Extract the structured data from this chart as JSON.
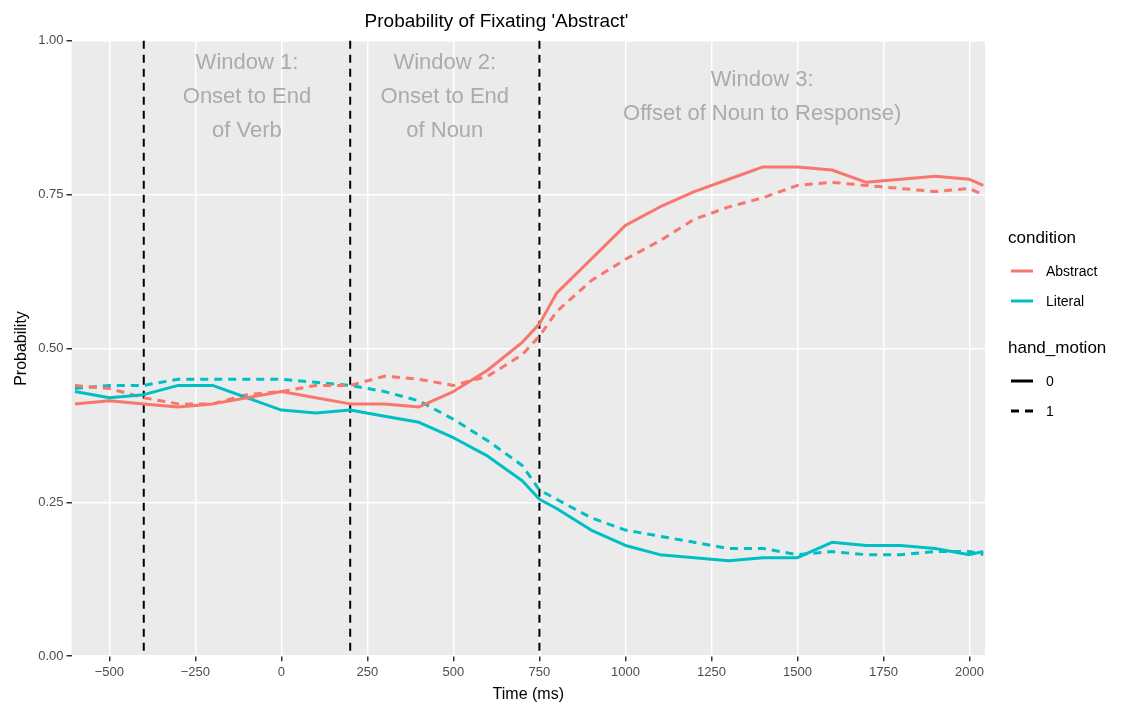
{
  "chart_data": {
    "type": "line",
    "title": "Probability of Fixating 'Abstract'",
    "xlabel": "Time (ms)",
    "ylabel": "Probability",
    "legend_title": [
      "condition",
      "hand_motion"
    ],
    "legend": "right",
    "grid": true,
    "x": [
      -600,
      -500,
      -400,
      -300,
      -200,
      -100,
      0,
      100,
      200,
      300,
      400,
      500,
      600,
      700,
      750,
      800,
      900,
      1000,
      1100,
      1200,
      1300,
      1400,
      1500,
      1600,
      1700,
      1800,
      1900,
      2000,
      2040
    ],
    "series": [
      {
        "name": "Abstract",
        "color": "#f8766d",
        "line_style": "solid",
        "values": [
          0.41,
          0.415,
          0.41,
          0.405,
          0.41,
          0.42,
          0.43,
          0.42,
          0.41,
          0.41,
          0.405,
          0.43,
          0.465,
          0.51,
          0.54,
          0.59,
          0.645,
          0.7,
          0.73,
          0.755,
          0.775,
          0.795,
          0.795,
          0.79,
          0.77,
          0.775,
          0.78,
          0.775,
          0.765
        ]
      },
      {
        "name": "Literal",
        "color": "#00bfc4",
        "line_style": "solid",
        "values": [
          0.43,
          0.42,
          0.425,
          0.44,
          0.44,
          0.42,
          0.4,
          0.395,
          0.4,
          0.39,
          0.38,
          0.355,
          0.325,
          0.285,
          0.255,
          0.24,
          0.205,
          0.18,
          0.165,
          0.16,
          0.155,
          0.16,
          0.16,
          0.185,
          0.18,
          0.18,
          0.175,
          0.165,
          0.17
        ]
      },
      {
        "color": "#f8766d",
        "line_style": "dashed",
        "values": [
          0.44,
          0.435,
          0.42,
          0.41,
          0.41,
          0.425,
          0.43,
          0.44,
          0.44,
          0.455,
          0.45,
          0.44,
          0.455,
          0.49,
          0.52,
          0.56,
          0.61,
          0.645,
          0.675,
          0.71,
          0.73,
          0.745,
          0.765,
          0.77,
          0.765,
          0.76,
          0.755,
          0.76,
          0.75
        ]
      },
      {
        "color": "#00bfc4",
        "line_style": "dashed",
        "values": [
          0.435,
          0.44,
          0.44,
          0.45,
          0.45,
          0.45,
          0.45,
          0.445,
          0.44,
          0.43,
          0.415,
          0.385,
          0.35,
          0.31,
          0.27,
          0.255,
          0.225,
          0.205,
          0.195,
          0.185,
          0.175,
          0.175,
          0.165,
          0.17,
          0.165,
          0.165,
          0.17,
          0.17,
          0.165
        ]
      }
    ],
    "xlim": [
      -610,
      2045
    ],
    "xticks": [
      {
        "value": -500,
        "label": "−500"
      },
      {
        "value": -250,
        "label": "−250"
      },
      0,
      250,
      500,
      750,
      1000,
      1250,
      1500,
      1750,
      2000
    ],
    "ylim": [
      0,
      1
    ],
    "yticks": [
      {
        "value": 0,
        "label": "0.00"
      },
      {
        "value": 0.25,
        "label": "0.25"
      },
      {
        "value": 0.5,
        "label": "0.50"
      },
      {
        "value": 0.75,
        "label": "0.75"
      },
      {
        "value": 1,
        "label": "1.00"
      }
    ],
    "ref_lines": [
      {
        "axis": "x",
        "value": -400,
        "color": "#000000",
        "line_style": "dashed"
      },
      {
        "axis": "x",
        "value": 200,
        "color": "#000000",
        "line_style": "dashed"
      },
      {
        "axis": "x",
        "value": 750,
        "color": "#000000",
        "line_style": "dashed"
      }
    ],
    "annotations": [
      "Window 1:\nOnset to End\nof Verb",
      "Window 2:\nOnset to End\nof Noun",
      "Window 3:\nOffset of Noun to Response)",
      "0",
      "1"
    ]
  }
}
